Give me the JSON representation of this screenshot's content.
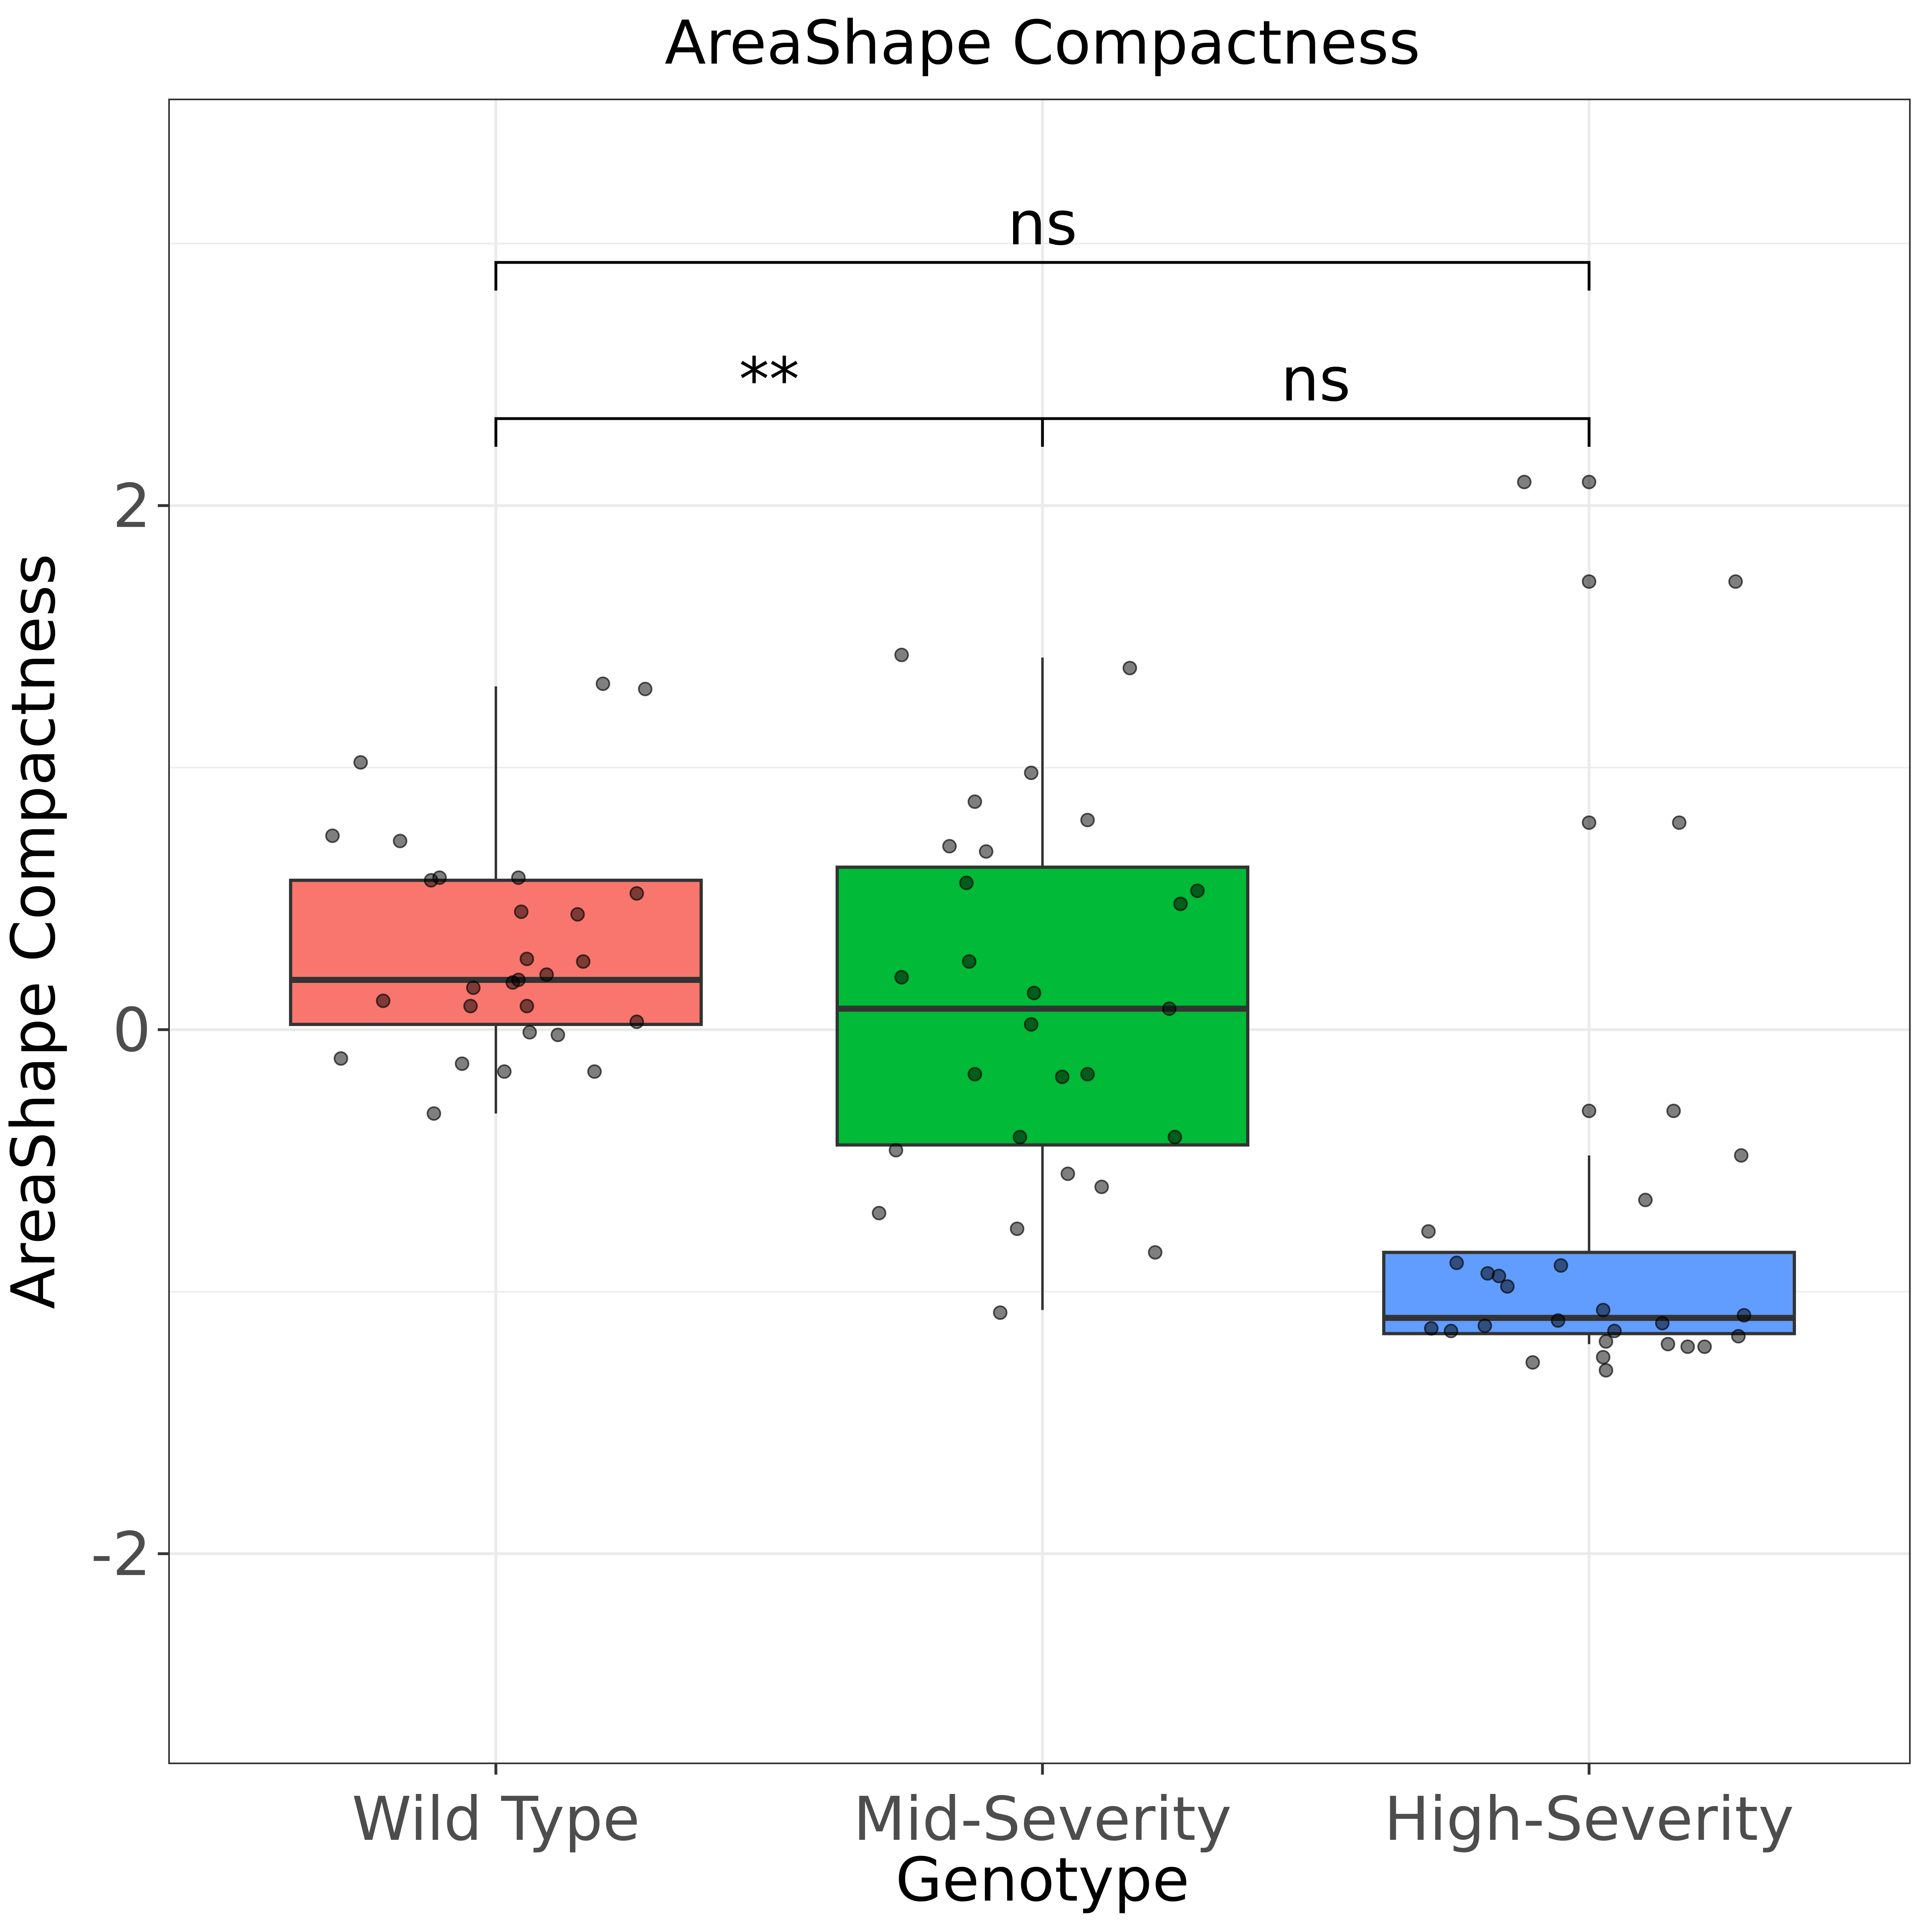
{
  "chart_data": {
    "type": "boxplot",
    "title": "AreaShape Compactness",
    "xlabel": "Genotype",
    "ylabel": "AreaShape Compactness",
    "ylim": [
      -2.8,
      3.55
    ],
    "yticks": [
      -2,
      0,
      2
    ],
    "ytick_labels": [
      "-2",
      "0",
      "2"
    ],
    "grid": true,
    "categories": [
      "Wild Type",
      "Mid-Severity",
      "High-Severity"
    ],
    "colors": [
      "#F8766D",
      "#00BA38",
      "#619CFF"
    ],
    "series": [
      {
        "category": "Wild Type",
        "box": {
          "min": -0.32,
          "q1": 0.02,
          "median": 0.19,
          "q3": 0.57,
          "max": 1.31
        },
        "points": [
          [
            -0.48,
            1.02
          ],
          [
            -0.58,
            0.74
          ],
          [
            -0.34,
            0.72
          ],
          [
            -0.23,
            0.57
          ],
          [
            -0.2,
            0.58
          ],
          [
            0.08,
            0.58
          ],
          [
            0.09,
            0.45
          ],
          [
            0.29,
            0.44
          ],
          [
            0.5,
            0.52
          ],
          [
            0.11,
            0.27
          ],
          [
            0.31,
            0.26
          ],
          [
            0.18,
            0.21
          ],
          [
            -0.4,
            0.11
          ],
          [
            -0.08,
            0.16
          ],
          [
            0.06,
            0.18
          ],
          [
            0.08,
            0.19
          ],
          [
            -0.09,
            0.09
          ],
          [
            0.11,
            0.09
          ],
          [
            0.5,
            0.03
          ],
          [
            0.12,
            -0.01
          ],
          [
            0.22,
            -0.02
          ],
          [
            -0.55,
            -0.11
          ],
          [
            -0.12,
            -0.13
          ],
          [
            0.03,
            -0.16
          ],
          [
            0.35,
            -0.16
          ],
          [
            -0.22,
            -0.32
          ],
          [
            0.38,
            1.32
          ],
          [
            0.53,
            1.3
          ]
        ]
      },
      {
        "category": "Mid-Severity",
        "box": {
          "min": -1.07,
          "q1": -0.44,
          "median": 0.08,
          "q3": 0.62,
          "max": 1.42
        },
        "points": [
          [
            -0.5,
            1.43
          ],
          [
            0.31,
            1.38
          ],
          [
            -0.04,
            0.98
          ],
          [
            -0.24,
            0.87
          ],
          [
            0.16,
            0.8
          ],
          [
            -0.33,
            0.7
          ],
          [
            -0.2,
            0.68
          ],
          [
            -0.27,
            0.56
          ],
          [
            0.55,
            0.53
          ],
          [
            0.49,
            0.48
          ],
          [
            -0.26,
            0.26
          ],
          [
            -0.5,
            0.2
          ],
          [
            -0.03,
            0.14
          ],
          [
            0.45,
            0.08
          ],
          [
            -0.04,
            0.02
          ],
          [
            -0.24,
            -0.17
          ],
          [
            0.07,
            -0.18
          ],
          [
            0.16,
            -0.17
          ],
          [
            -0.08,
            -0.41
          ],
          [
            0.47,
            -0.41
          ],
          [
            -0.52,
            -0.46
          ],
          [
            0.09,
            -0.55
          ],
          [
            0.21,
            -0.6
          ],
          [
            -0.58,
            -0.7
          ],
          [
            -0.09,
            -0.76
          ],
          [
            0.4,
            -0.85
          ],
          [
            -0.15,
            -1.08
          ]
        ]
      },
      {
        "category": "High-Severity",
        "box": {
          "min": -1.2,
          "q1": -1.16,
          "median": -1.1,
          "q3": -0.85,
          "max": -0.48
        },
        "points": [
          [
            -0.23,
            2.09
          ],
          [
            0.0,
            2.09
          ],
          [
            0.0,
            1.71
          ],
          [
            0.52,
            1.71
          ],
          [
            0.0,
            0.79
          ],
          [
            0.32,
            0.79
          ],
          [
            0.0,
            -0.31
          ],
          [
            0.3,
            -0.31
          ],
          [
            0.54,
            -0.48
          ],
          [
            0.2,
            -0.65
          ],
          [
            -0.57,
            -0.77
          ],
          [
            -0.47,
            -0.89
          ],
          [
            -0.36,
            -0.93
          ],
          [
            -0.32,
            -0.94
          ],
          [
            -0.29,
            -0.98
          ],
          [
            -0.1,
            -0.9
          ],
          [
            0.05,
            -1.07
          ],
          [
            -0.11,
            -1.11
          ],
          [
            -0.56,
            -1.14
          ],
          [
            -0.49,
            -1.15
          ],
          [
            -0.37,
            -1.13
          ],
          [
            0.06,
            -1.19
          ],
          [
            0.09,
            -1.15
          ],
          [
            0.26,
            -1.12
          ],
          [
            0.28,
            -1.2
          ],
          [
            0.35,
            -1.21
          ],
          [
            0.41,
            -1.21
          ],
          [
            0.53,
            -1.17
          ],
          [
            0.55,
            -1.09
          ],
          [
            -0.2,
            -1.27
          ],
          [
            0.05,
            -1.25
          ],
          [
            0.06,
            -1.3
          ]
        ]
      }
    ],
    "comparisons": [
      {
        "from": "Wild Type",
        "to": "Mid-Severity",
        "label": "**",
        "level": 1
      },
      {
        "from": "Mid-Severity",
        "to": "High-Severity",
        "label": "ns",
        "level": 1
      },
      {
        "from": "Wild Type",
        "to": "High-Severity",
        "label": "ns",
        "level": 2
      }
    ]
  }
}
